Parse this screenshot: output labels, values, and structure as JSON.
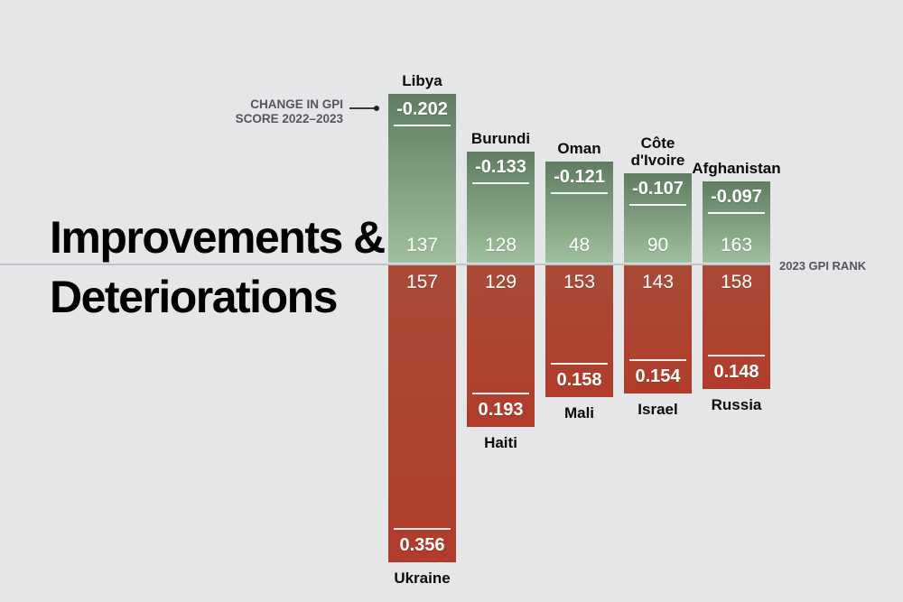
{
  "background": "#e5e6e8",
  "title": {
    "line1": "Improvements &",
    "line2": "Deteriorations"
  },
  "chart_data": {
    "type": "bar",
    "title": "Improvements & Deteriorations",
    "orientation": "diverging-vertical",
    "annotations": {
      "change_note_line1": "CHANGE IN GPI",
      "change_note_line2": "SCORE 2022–2023",
      "rank_note": "2023 GPI RANK"
    },
    "colors": {
      "improvement_top": "#5f7d60",
      "improvement_bottom": "#9fbf9e",
      "deterioration_top": "#a84b37",
      "deterioration_bottom": "#b13c2b"
    },
    "columns": [
      {
        "improvement": {
          "country": "Libya",
          "change": -0.202,
          "change_display": "-0.202",
          "rank_2023": "137"
        },
        "deterioration": {
          "country": "Ukraine",
          "change": 0.356,
          "change_display": "0.356",
          "rank_2023": "157"
        }
      },
      {
        "improvement": {
          "country": "Burundi",
          "change": -0.133,
          "change_display": "-0.133",
          "rank_2023": "128"
        },
        "deterioration": {
          "country": "Haiti",
          "change": 0.193,
          "change_display": "0.193",
          "rank_2023": "129"
        }
      },
      {
        "improvement": {
          "country": "Oman",
          "change": -0.121,
          "change_display": "-0.121",
          "rank_2023": "48"
        },
        "deterioration": {
          "country": "Mali",
          "change": 0.158,
          "change_display": "0.158",
          "rank_2023": "153"
        }
      },
      {
        "improvement": {
          "country": "Côte d'Ivoire",
          "change": -0.107,
          "change_display": "-0.107",
          "rank_2023": "90"
        },
        "deterioration": {
          "country": "Israel",
          "change": 0.154,
          "change_display": "0.154",
          "rank_2023": "143"
        }
      },
      {
        "improvement": {
          "country": "Afghanistan",
          "change": -0.097,
          "change_display": "-0.097",
          "rank_2023": "163"
        },
        "deterioration": {
          "country": "Russia",
          "change": 0.148,
          "change_display": "0.148",
          "rank_2023": "158"
        }
      }
    ]
  }
}
